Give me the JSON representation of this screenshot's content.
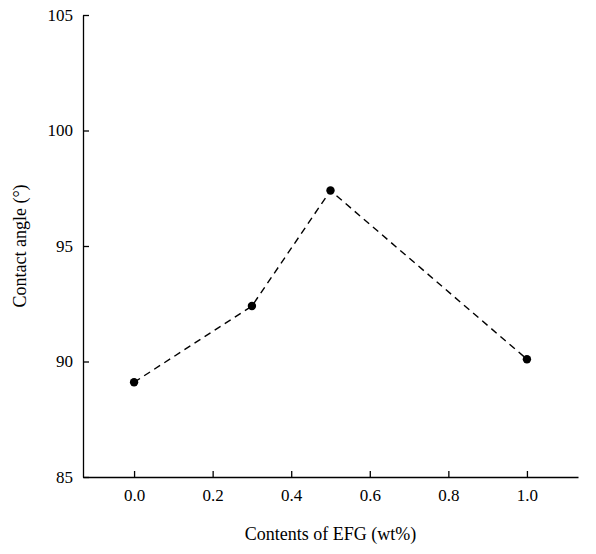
{
  "chart_data": {
    "type": "line",
    "x_label": "Contents of EFG (wt%)",
    "y_label": "Contact angle (°)",
    "x": [
      0.0,
      0.3,
      0.5,
      1.0
    ],
    "values": [
      89.1,
      92.4,
      97.4,
      90.1
    ],
    "color": "#000000",
    "marker": "circle",
    "line_style": "dashed",
    "xlim": [
      -0.13,
      1.13
    ],
    "xticks": [
      {
        "value": 0,
        "label": "0.0"
      },
      {
        "value": 0.2,
        "label": "0.2"
      },
      {
        "value": 0.4,
        "label": "0.4"
      },
      {
        "value": 0.6,
        "label": "0.6"
      },
      {
        "value": 0.8,
        "label": "0.8"
      },
      {
        "value": 1,
        "label": "1.0"
      }
    ],
    "ylim": [
      85,
      105
    ],
    "yticks": [
      85,
      90,
      95,
      100,
      105
    ],
    "grid": false
  }
}
